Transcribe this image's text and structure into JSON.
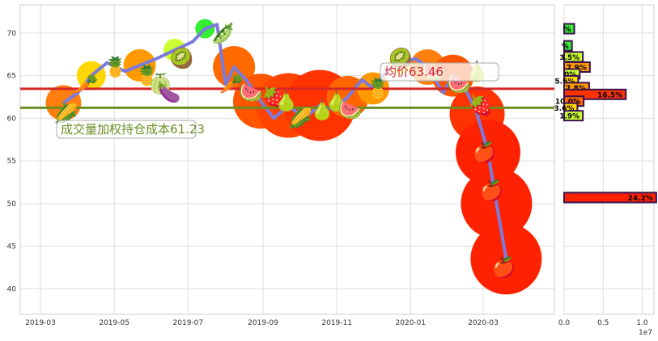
{
  "chart_data": [
    {
      "type": "line",
      "title": "",
      "xlabel": "",
      "ylabel": "",
      "x_ticks": [
        "2019-03",
        "2019-05",
        "2019-07",
        "2019-09",
        "2019-11",
        "2020-01",
        "2020-03"
      ],
      "y_ticks": [
        40,
        45,
        50,
        55,
        60,
        65,
        70
      ],
      "ylim": [
        37,
        73.3
      ],
      "grid": true,
      "series": [
        {
          "x": [
            "2019-03-20",
            "2019-04-01",
            "2019-04-12",
            "2019-04-25",
            "2019-05-10",
            "2019-05-22",
            "2019-06-05",
            "2019-06-20",
            "2019-07-05",
            "2019-07-15",
            "2019-07-25",
            "2019-08-01",
            "2019-08-08",
            "2019-08-18",
            "2019-08-30",
            "2019-09-10",
            "2019-09-22",
            "2019-10-05",
            "2019-10-18",
            "2019-10-30",
            "2019-11-10",
            "2019-11-22",
            "2019-12-01",
            "2019-12-12",
            "2019-12-24",
            "2020-01-05",
            "2020-01-15",
            "2020-01-28",
            "2020-02-05",
            "2020-02-15",
            "2020-02-25",
            "2020-03-05",
            "2020-03-12",
            "2020-03-20"
          ],
          "values": [
            61.8,
            63.0,
            65.0,
            66.5,
            65.5,
            66.2,
            67.0,
            68.0,
            69.0,
            70.5,
            71.0,
            64.0,
            66.0,
            64.5,
            62.0,
            60.0,
            61.5,
            60.0,
            61.5,
            61.0,
            62.5,
            64.5,
            63.5,
            65.5,
            66.5,
            67.0,
            66.0,
            63.0,
            65.0,
            63.5,
            60.5,
            56.0,
            50.0,
            43.5
          ]
        }
      ],
      "horizontal_lines": [
        {
          "y": 63.46,
          "color": "#d62728",
          "label": "均价63.46"
        },
        {
          "y": 61.23,
          "color": "#6b8e23",
          "label": "成交量加权持仓成本61.23"
        }
      ],
      "bubbles": [
        {
          "x": "2019-03-20",
          "y": 61.8,
          "r": 22,
          "color": "#ff7f0e"
        },
        {
          "x": "2019-04-12",
          "y": 65.0,
          "r": 18,
          "color": "#ffd700"
        },
        {
          "x": "2019-05-22",
          "y": 66.2,
          "r": 20,
          "color": "#ff9900"
        },
        {
          "x": "2019-06-20",
          "y": 68.0,
          "r": 14,
          "color": "#ccff33"
        },
        {
          "x": "2019-07-15",
          "y": 70.5,
          "r": 12,
          "color": "#33ee33"
        },
        {
          "x": "2019-08-08",
          "y": 66.0,
          "r": 26,
          "color": "#ff6a00"
        },
        {
          "x": "2019-08-30",
          "y": 62.0,
          "r": 34,
          "color": "#ff5500"
        },
        {
          "x": "2019-09-22",
          "y": 61.5,
          "r": 40,
          "color": "#ff4400"
        },
        {
          "x": "2019-10-18",
          "y": 61.5,
          "r": 44,
          "color": "#ff3300"
        },
        {
          "x": "2019-11-10",
          "y": 62.5,
          "r": 26,
          "color": "#ff6600"
        },
        {
          "x": "2019-12-01",
          "y": 63.5,
          "r": 20,
          "color": "#ff9900"
        },
        {
          "x": "2019-12-24",
          "y": 66.5,
          "r": 14,
          "color": "#ccff33"
        },
        {
          "x": "2020-01-15",
          "y": 66.0,
          "r": 22,
          "color": "#ff7f0e"
        },
        {
          "x": "2020-02-05",
          "y": 65.0,
          "r": 26,
          "color": "#ff5500"
        },
        {
          "x": "2020-02-25",
          "y": 60.5,
          "r": 34,
          "color": "#ff3300"
        },
        {
          "x": "2020-03-05",
          "y": 56.0,
          "r": 40,
          "color": "#ff2200"
        },
        {
          "x": "2020-03-12",
          "y": 50.0,
          "r": 44,
          "color": "#ff2200"
        },
        {
          "x": "2020-03-20",
          "y": 43.5,
          "r": 44,
          "color": "#ff2200"
        }
      ],
      "markers": [
        {
          "x": "2019-03-22",
          "y": 60.5,
          "icon": "🌽"
        },
        {
          "x": "2019-04-08",
          "y": 64.0,
          "icon": "🥕"
        },
        {
          "x": "2019-05-02",
          "y": 66.0,
          "icon": "🍍"
        },
        {
          "x": "2019-05-28",
          "y": 65.0,
          "icon": "🍍"
        },
        {
          "x": "2019-06-08",
          "y": 64.0,
          "icon": "🍈"
        },
        {
          "x": "2019-06-15",
          "y": 63.0,
          "icon": "🍆"
        },
        {
          "x": "2019-06-26",
          "y": 67.0,
          "icon": "🥝"
        },
        {
          "x": "2019-07-30",
          "y": 70.0,
          "icon": "🫛"
        },
        {
          "x": "2019-08-06",
          "y": 64.0,
          "icon": "🥕"
        },
        {
          "x": "2019-08-22",
          "y": 63.0,
          "icon": "🍉"
        },
        {
          "x": "2019-09-10",
          "y": 62.5,
          "icon": "🍓"
        },
        {
          "x": "2019-09-20",
          "y": 62.0,
          "icon": "🍐"
        },
        {
          "x": "2019-10-02",
          "y": 60.0,
          "icon": "🌽"
        },
        {
          "x": "2019-10-20",
          "y": 61.0,
          "icon": "🍐"
        },
        {
          "x": "2019-11-01",
          "y": 62.0,
          "icon": "🍐"
        },
        {
          "x": "2019-11-12",
          "y": 61.0,
          "icon": "🍉"
        },
        {
          "x": "2019-12-05",
          "y": 63.5,
          "icon": "🍍"
        },
        {
          "x": "2019-12-24",
          "y": 67.0,
          "icon": "🥝"
        },
        {
          "x": "2020-01-20",
          "y": 65.5,
          "icon": "🍉"
        },
        {
          "x": "2020-02-10",
          "y": 64.0,
          "icon": "🍉"
        },
        {
          "x": "2020-02-25",
          "y": 65.5,
          "icon": "🍐"
        },
        {
          "x": "2020-02-28",
          "y": 61.5,
          "icon": "🍓"
        },
        {
          "x": "2020-03-02",
          "y": 56.0,
          "icon": "🍎"
        },
        {
          "x": "2020-03-08",
          "y": 51.5,
          "icon": "🍎"
        },
        {
          "x": "2020-03-18",
          "y": 42.5,
          "icon": "🍎"
        }
      ]
    },
    {
      "type": "bar",
      "orientation": "horizontal",
      "x_ticks": [
        "0.0",
        "0.5",
        "1.0"
      ],
      "x_multiplier": "1e7",
      "xlim": [
        0,
        11500000
      ],
      "bars": [
        {
          "price": 70.5,
          "value": 1300000,
          "label": "%",
          "color": "#33ee33"
        },
        {
          "price": 68.5,
          "value": 1000000,
          "label": "%",
          "color": "#33ee33"
        },
        {
          "price": 67.2,
          "value": 2400000,
          "label": "3.5%",
          "color": "#ccff33"
        },
        {
          "price": 66.0,
          "value": 3300000,
          "label": "7.9%",
          "color": "#ff9900"
        },
        {
          "price": 65.2,
          "value": 2000000,
          "label": "0%",
          "color": "#ccff33"
        },
        {
          "price": 64.4,
          "value": 1800000,
          "label": "5.6%",
          "color": "#ffd700"
        },
        {
          "price": 63.6,
          "value": 3200000,
          "label": "7.8%",
          "color": "#ff9900"
        },
        {
          "price": 62.8,
          "value": 7900000,
          "label": "16.5%",
          "color": "#ff3300"
        },
        {
          "price": 62.0,
          "value": 2500000,
          "label": "10.0%",
          "color": "#ff6600"
        },
        {
          "price": 61.2,
          "value": 1700000,
          "label": "3.6%",
          "color": "#ffd700"
        },
        {
          "price": 60.3,
          "value": 2400000,
          "label": "1.9%",
          "color": "#ccff33"
        },
        {
          "price": 50.7,
          "value": 11800000,
          "label": "24.2%",
          "color": "#ff2200"
        }
      ]
    }
  ]
}
